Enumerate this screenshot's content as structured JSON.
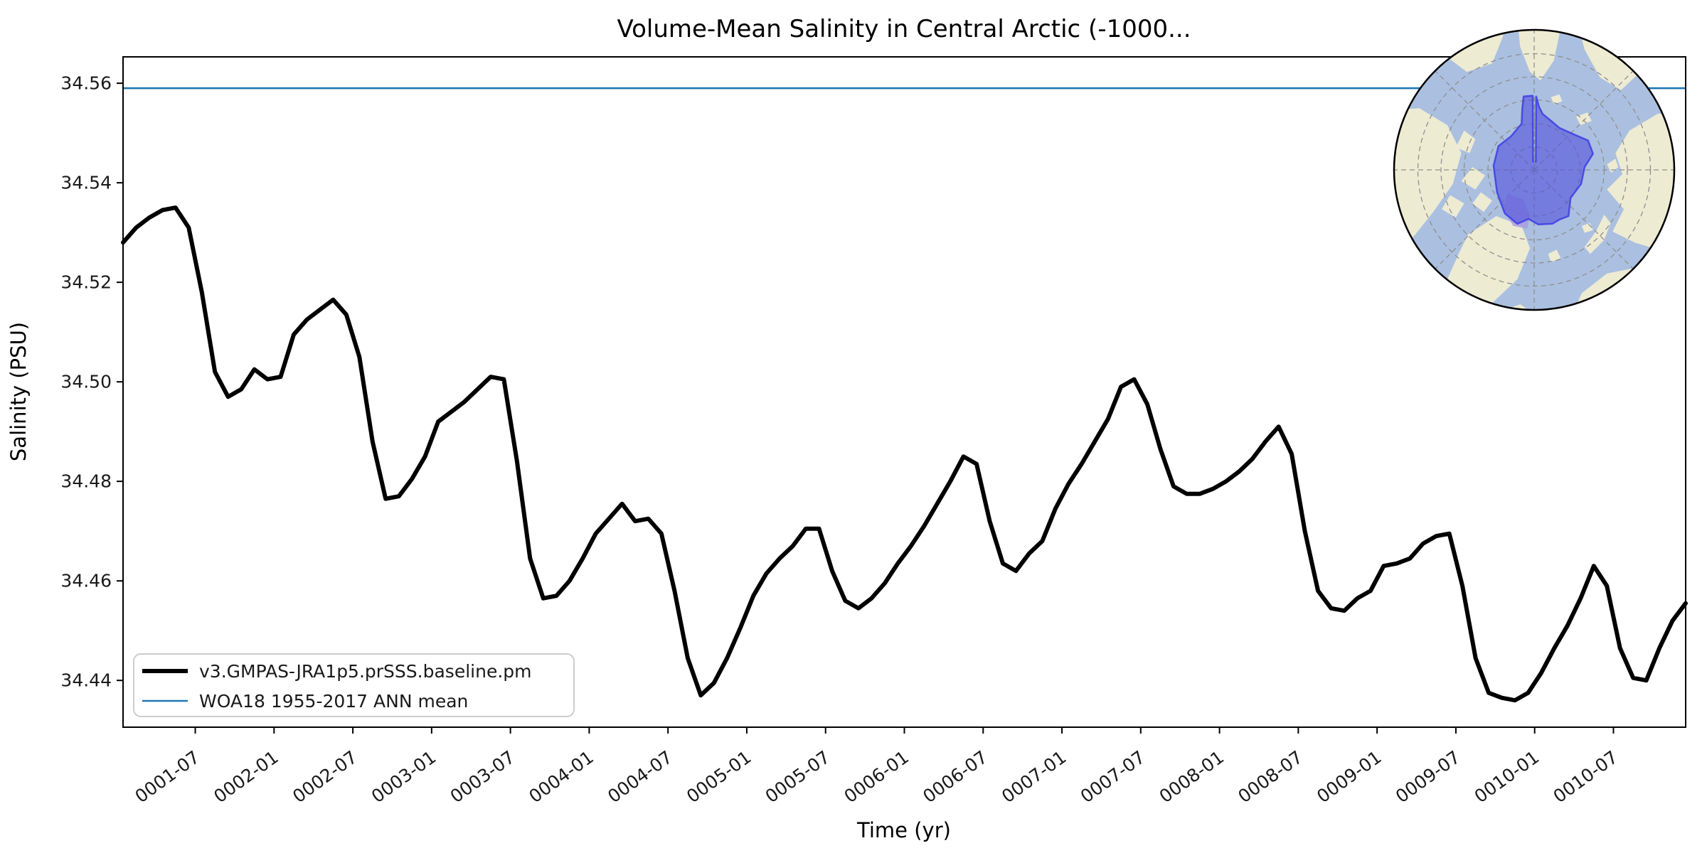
{
  "title": "Volume-Mean Salinity in Central Arctic (-1000...",
  "axes": {
    "xlabel": "Time (yr)",
    "ylabel": "Salinity (PSU)"
  },
  "legend": {
    "entries": [
      {
        "label": "v3.GMPAS-JRA1p5.prSSS.baseline.pm",
        "color": "#000000",
        "linewidth": 6
      },
      {
        "label": "WOA18 1955-2017 ANN mean",
        "color": "#1f77b4",
        "linewidth": 2.6
      }
    ]
  },
  "colors": {
    "series_main": "#000000",
    "series_reference": "#1f77b4",
    "spine": "#000000",
    "tick_label": "#1a1a1a",
    "legend_border": "#cccccc",
    "map_ocean": "#abc0e0",
    "map_land": "#eeebd3",
    "map_graticule": "#8f8f8f",
    "map_region_fill": "#5353dc",
    "map_region_border": "#3d3de4",
    "map_region_patch": "#a79ae0",
    "map_outline": "#000000"
  },
  "chart_data": {
    "type": "line",
    "title": "Volume-Mean Salinity in Central Arctic (-1000...",
    "xlabel": "Time (yr)",
    "ylabel": "Salinity (PSU)",
    "ylim": [
      34.4306,
      34.5653
    ],
    "y_ticks": [
      34.44,
      34.46,
      34.48,
      34.5,
      34.52,
      34.54,
      34.56
    ],
    "x_tick_labels": [
      "0001-07",
      "0002-01",
      "0002-07",
      "0003-01",
      "0003-07",
      "0004-01",
      "0004-07",
      "0005-01",
      "0005-07",
      "0006-01",
      "0006-07",
      "0007-01",
      "0007-07",
      "0008-01",
      "0008-07",
      "0009-01",
      "0009-07",
      "0010-01",
      "0010-07"
    ],
    "x_start": "0001-01",
    "x_end": "0010-12",
    "x_frequency": "monthly",
    "grid": false,
    "legend_position": "lower left",
    "series": [
      {
        "name": "v3.GMPAS-JRA1p5.prSSS.baseline.pm",
        "style": "line",
        "color": "#000000",
        "linewidth": 6,
        "values": [
          34.528,
          34.531,
          34.533,
          34.5345,
          34.535,
          34.531,
          34.518,
          34.502,
          34.497,
          34.4985,
          34.5025,
          34.5005,
          34.501,
          34.5095,
          34.5125,
          34.5145,
          34.5165,
          34.5135,
          34.505,
          34.488,
          34.4765,
          34.477,
          34.4805,
          34.485,
          34.492,
          34.494,
          34.496,
          34.4985,
          34.501,
          34.5005,
          34.484,
          34.4645,
          34.4565,
          34.457,
          34.46,
          34.4645,
          34.4695,
          34.4725,
          34.4755,
          34.472,
          34.4725,
          34.4695,
          34.458,
          34.4445,
          34.437,
          34.4395,
          34.4445,
          34.4505,
          34.457,
          34.4615,
          34.4645,
          34.467,
          34.4705,
          34.4705,
          34.462,
          34.456,
          34.4545,
          34.4565,
          34.4595,
          34.4635,
          34.467,
          34.471,
          34.4755,
          34.48,
          34.485,
          34.4835,
          34.472,
          34.4635,
          34.462,
          34.4655,
          34.468,
          34.4745,
          34.4795,
          34.4835,
          34.488,
          34.4925,
          34.499,
          34.5005,
          34.4955,
          34.4865,
          34.479,
          34.4775,
          34.4775,
          34.4785,
          34.48,
          34.482,
          34.4845,
          34.488,
          34.491,
          34.4855,
          34.47,
          34.458,
          34.4545,
          34.454,
          34.4565,
          34.458,
          34.463,
          34.4635,
          34.4645,
          34.4675,
          34.469,
          34.4695,
          34.459,
          34.4445,
          34.4375,
          34.4365,
          34.436,
          34.4375,
          34.4415,
          34.4465,
          34.451,
          34.4565,
          34.463,
          34.459,
          34.4465,
          34.4405,
          34.44,
          34.4465,
          34.452,
          34.4555
        ]
      },
      {
        "name": "WOA18 1955-2017 ANN mean",
        "style": "hline",
        "color": "#1f77b4",
        "linewidth": 2.6,
        "value": 34.559
      }
    ],
    "inset_map": {
      "kind": "polar-stereographic locator map",
      "highlighted_region": "Central Arctic",
      "position": "upper right"
    }
  }
}
